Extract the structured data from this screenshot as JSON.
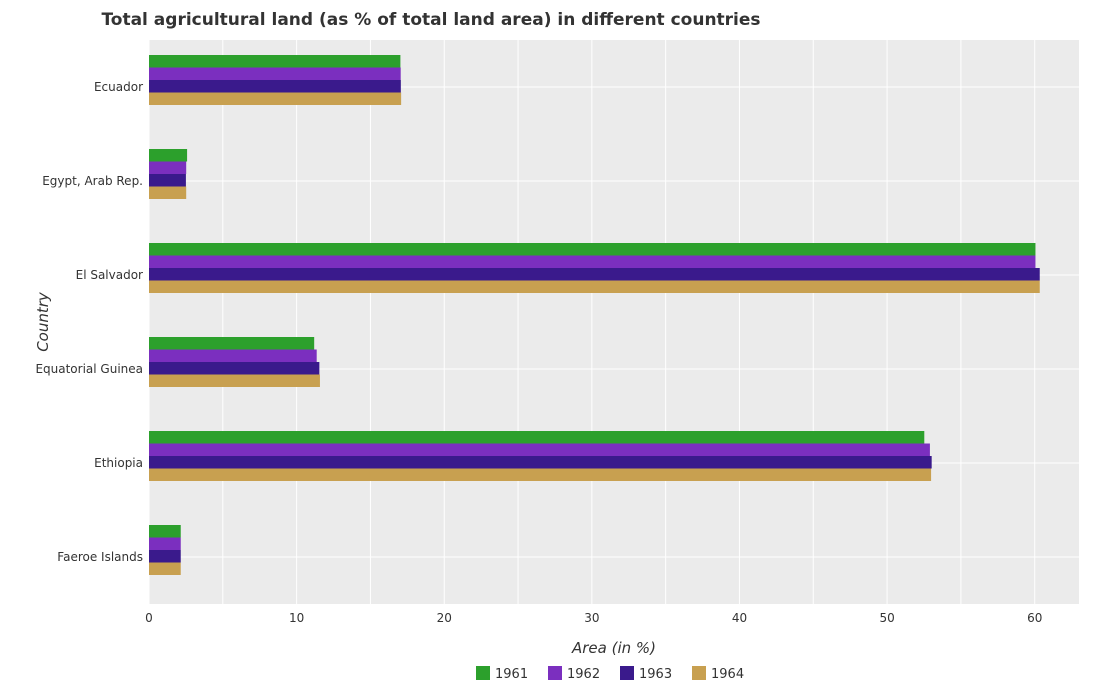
{
  "chart_data": {
    "type": "bar",
    "orientation": "horizontal",
    "title": "Total agricultural land (as % of total land area) in different countries",
    "xlabel": "Area (in %)",
    "ylabel": "Country",
    "xlim": [
      0,
      63
    ],
    "xticks": [
      "0",
      "10",
      "20",
      "30",
      "40",
      "50",
      "60"
    ],
    "grid": true,
    "legend_position": "bottom-center",
    "categories": [
      "Ecuador",
      "Egypt, Arab Rep.",
      "El Salvador",
      "Equatorial Guinea",
      "Ethiopia",
      "Faeroe Islands"
    ],
    "series": [
      {
        "name": "1961",
        "color": "#2ca02c",
        "values": [
          17.03,
          2.58,
          60.05,
          11.19,
          52.52,
          2.15
        ]
      },
      {
        "name": "1962",
        "color": "#7b2fbf",
        "values": [
          17.05,
          2.52,
          60.05,
          11.36,
          52.9,
          2.15
        ]
      },
      {
        "name": "1963",
        "color": "#3a1a8c",
        "values": [
          17.06,
          2.5,
          60.34,
          11.54,
          53.02,
          2.15
        ]
      },
      {
        "name": "1964",
        "color": "#c8a050",
        "values": [
          17.08,
          2.52,
          60.34,
          11.58,
          52.98,
          2.15
        ]
      }
    ]
  }
}
